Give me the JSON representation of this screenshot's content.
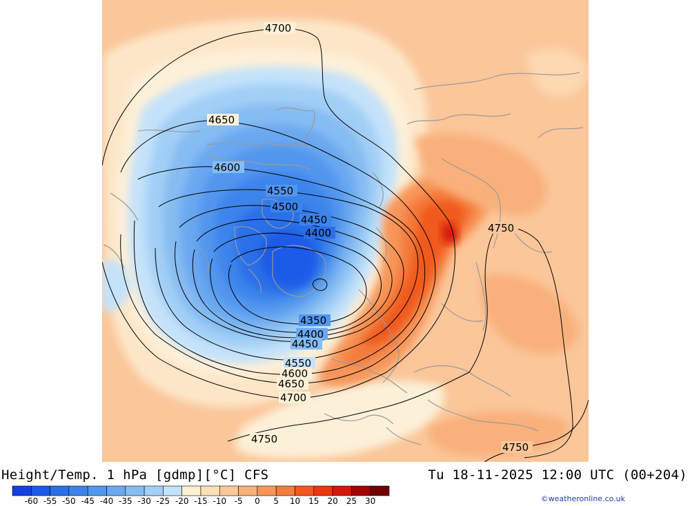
{
  "map": {
    "contours": [
      {
        "label": "4700"
      },
      {
        "label": "4650"
      },
      {
        "label": "4600"
      },
      {
        "label": "4550"
      },
      {
        "label": "4500"
      },
      {
        "label": "4450"
      },
      {
        "label": "4400"
      },
      {
        "label": "4350"
      },
      {
        "label": "4400"
      },
      {
        "label": "4450"
      },
      {
        "label": "4550"
      },
      {
        "label": "4600"
      },
      {
        "label": "4650"
      },
      {
        "label": "4700"
      },
      {
        "label": "4750"
      },
      {
        "label": "4750"
      },
      {
        "label": "4750"
      }
    ]
  },
  "footer": {
    "title": "Height/Temp. 1 hPa [gdmp][°C] CFS",
    "valid_time": "Tu 18-11-2025 12:00 UTC (00+204)",
    "credit": "©weatheronline.co.uk"
  },
  "legend": {
    "ticks": [
      "-60",
      "-55",
      "-50",
      "-45",
      "-40",
      "-35",
      "-30",
      "-25",
      "-20",
      "-15",
      "-10",
      "-5",
      "0",
      "5",
      "10",
      "15",
      "20",
      "25",
      "30"
    ],
    "colors": [
      "#1440e0",
      "#1e5ae8",
      "#2a6fe8",
      "#3c84ec",
      "#5296ee",
      "#6aa8f0",
      "#86bcf2",
      "#a2cff6",
      "#c4e2fa",
      "#fdf0d0",
      "#fde0b8",
      "#fcc898",
      "#f9b07a",
      "#f7965a",
      "#f47c3c",
      "#f05a1e",
      "#e8380c",
      "#d41808",
      "#a40404",
      "#700000"
    ]
  }
}
